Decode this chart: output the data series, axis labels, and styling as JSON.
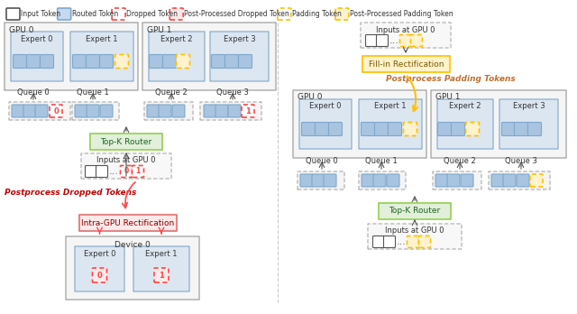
{
  "fig_width": 6.4,
  "fig_height": 3.48,
  "bg_color": "#ffffff",
  "light_blue": "#c5d9f1",
  "blue_token": "#a8c4e0",
  "light_gray": "#f0f0f0",
  "gpu_bg": "#f5f5f5",
  "expert_bg": "#dce6f1",
  "green_box": "#92d050",
  "green_bg": "#e2efda",
  "red_box": "#f4b8b8",
  "red_bg": "#fde9e9",
  "yellow_token": "#ffd966",
  "yellow_bg": "#fff2cc",
  "dropped_red": "#ff4444",
  "padding_yellow": "#ffc000",
  "arrow_color": "#333333",
  "text_color": "#333333",
  "red_text": "#c00000",
  "orange_text": "#c07030",
  "legend_items": [
    {
      "label": "Input Token",
      "style": "plain",
      "color": "#ffffff",
      "edgecolor": "#555555"
    },
    {
      "label": "Routed Token",
      "style": "plain",
      "color": "#c5d9f1",
      "edgecolor": "#7fa8cc"
    },
    {
      "label": "Dropped Token",
      "style": "dashed",
      "color": "#ffffff",
      "edgecolor": "#ff4444"
    },
    {
      "label": "Post-Processed Dropped Token",
      "style": "dashed",
      "color": "#fde9e9",
      "edgecolor": "#ff4444"
    },
    {
      "label": "Padding Token",
      "style": "dashed",
      "color": "#ffffff",
      "edgecolor": "#ffc000"
    },
    {
      "label": "Post-Processed Padding Token",
      "style": "dashed",
      "color": "#fff2cc",
      "edgecolor": "#ffc000"
    }
  ]
}
